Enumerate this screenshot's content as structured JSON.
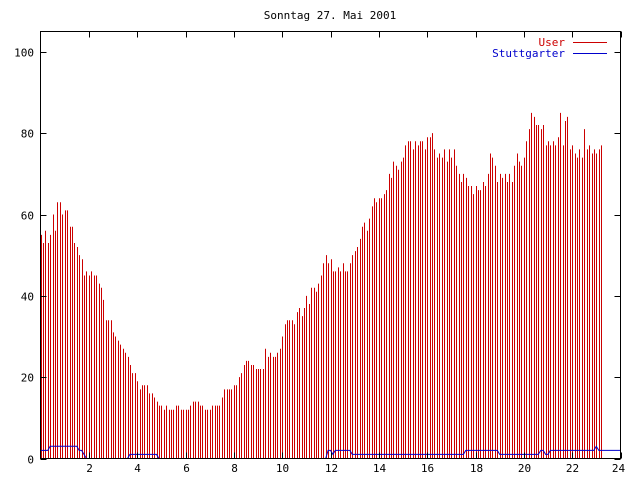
{
  "chart_data": {
    "type": "bar",
    "title": "Sonntag 27. Mai 2001",
    "xlabel": "",
    "ylabel": "",
    "xlim": [
      0,
      24
    ],
    "ylim": [
      0,
      105
    ],
    "x_ticks": [
      2,
      4,
      6,
      8,
      10,
      12,
      14,
      16,
      18,
      20,
      22,
      24
    ],
    "y_ticks": [
      0,
      20,
      40,
      60,
      80,
      100
    ],
    "grid": false,
    "legend_position": "top-right",
    "sample_step_hours": 0.1,
    "series": [
      {
        "name": "User",
        "style": "impulses",
        "color": "#cc0000",
        "values": [
          55,
          53,
          56,
          53,
          55,
          60,
          56,
          63,
          63,
          60,
          61,
          61,
          57,
          57,
          53,
          52,
          50,
          49,
          45,
          46,
          45,
          46,
          45,
          45,
          43,
          42,
          39,
          34,
          34,
          34,
          31,
          30,
          29,
          28,
          27,
          26,
          25,
          23,
          21,
          21,
          19,
          17,
          18,
          18,
          18,
          16,
          16,
          15,
          14,
          13,
          13,
          12,
          13,
          12,
          12,
          12,
          13,
          13,
          12,
          12,
          12,
          12,
          13,
          14,
          14,
          14,
          13,
          13,
          12,
          12,
          12,
          13,
          13,
          13,
          13,
          15,
          17,
          17,
          17,
          17,
          18,
          18,
          20,
          21,
          23,
          24,
          24,
          23,
          23,
          22,
          22,
          22,
          22,
          27,
          25,
          26,
          25,
          25,
          26,
          27,
          30,
          33,
          34,
          34,
          34,
          33,
          36,
          37,
          35,
          37,
          40,
          38,
          42,
          42,
          41,
          43,
          45,
          48,
          50,
          48,
          49,
          46,
          46,
          47,
          46,
          48,
          46,
          46,
          48,
          50,
          51,
          52,
          54,
          57,
          58,
          56,
          59,
          62,
          64,
          63,
          64,
          64,
          65,
          66,
          70,
          69,
          73,
          72,
          71,
          73,
          74,
          77,
          78,
          78,
          76,
          78,
          77,
          78,
          78,
          76,
          79,
          79,
          80,
          76,
          74,
          75,
          74,
          76,
          73,
          76,
          74,
          76,
          72,
          70,
          68,
          70,
          69,
          67,
          67,
          65,
          67,
          66,
          66,
          68,
          67,
          70,
          75,
          74,
          72,
          68,
          70,
          69,
          70,
          68,
          70,
          68,
          72,
          75,
          73,
          72,
          74,
          78,
          81,
          85,
          84,
          82,
          82,
          81,
          82,
          77,
          78,
          77,
          78,
          77,
          79,
          85,
          77,
          83,
          84,
          76,
          77,
          75,
          74,
          76,
          74,
          81,
          76,
          77,
          75,
          76,
          75,
          76,
          77
        ]
      },
      {
        "name": "Stuttgarter",
        "style": "lines",
        "color": "#0000cc",
        "values": [
          2,
          2,
          2,
          2,
          3,
          3,
          3,
          3,
          3,
          3,
          3,
          3,
          3,
          3,
          3,
          3,
          2,
          2,
          1,
          0,
          0,
          0,
          0,
          0,
          0,
          0,
          0,
          0,
          0,
          0,
          0,
          0,
          0,
          0,
          0,
          0,
          0,
          1,
          1,
          1,
          1,
          1,
          1,
          1,
          1,
          1,
          1,
          1,
          1,
          0,
          0,
          0,
          0,
          0,
          0,
          0,
          0,
          0,
          0,
          0,
          0,
          0,
          0,
          0,
          0,
          0,
          0,
          0,
          0,
          0,
          0,
          0,
          0,
          0,
          0,
          0,
          0,
          0,
          0,
          0,
          0,
          0,
          0,
          0,
          0,
          0,
          0,
          0,
          0,
          0,
          0,
          0,
          0,
          0,
          0,
          0,
          0,
          0,
          0,
          0,
          0,
          0,
          0,
          0,
          0,
          0,
          0,
          0,
          0,
          0,
          0,
          0,
          0,
          0,
          0,
          0,
          0,
          0,
          0,
          2,
          2,
          1,
          2,
          2,
          2,
          2,
          2,
          2,
          2,
          1,
          1,
          1,
          1,
          1,
          1,
          1,
          1,
          1,
          1,
          1,
          1,
          1,
          1,
          1,
          1,
          1,
          1,
          1,
          1,
          1,
          1,
          1,
          1,
          1,
          1,
          1,
          1,
          1,
          1,
          1,
          1,
          1,
          1,
          1,
          1,
          1,
          1,
          1,
          1,
          1,
          1,
          1,
          1,
          1,
          1,
          1,
          2,
          2,
          2,
          2,
          2,
          2,
          2,
          2,
          2,
          2,
          2,
          2,
          2,
          2,
          1,
          1,
          1,
          1,
          1,
          1,
          1,
          1,
          1,
          1,
          1,
          1,
          1,
          1,
          1,
          1,
          1,
          2,
          2,
          1,
          1,
          2,
          2,
          2,
          2,
          2,
          2,
          2,
          2,
          2,
          2,
          2,
          2,
          2,
          2,
          2,
          2,
          2,
          2,
          2,
          3,
          2,
          2,
          2,
          2,
          2,
          2,
          2,
          2,
          2,
          2
        ]
      }
    ]
  }
}
